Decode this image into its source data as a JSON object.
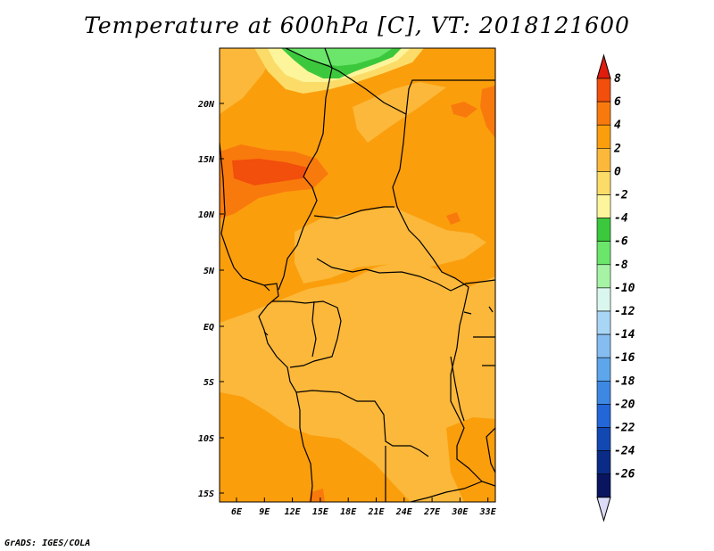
{
  "title": "Temperature at 600hPa [C], VT: 2018121600",
  "credit": "GrADS: IGES/COLA",
  "map": {
    "lat_labels": [
      "20N",
      "15N",
      "10N",
      "5N",
      "EQ",
      "5S",
      "10S",
      "15S"
    ],
    "lon_labels": [
      "6E",
      "9E",
      "12E",
      "15E",
      "18E",
      "21E",
      "24E",
      "27E",
      "30E",
      "33E"
    ]
  },
  "colorbar": {
    "levels": [
      "8",
      "6",
      "4",
      "2",
      "0",
      "-2",
      "-4",
      "-6",
      "-8",
      "-10",
      "-12",
      "-14",
      "-16",
      "-18",
      "-20",
      "-22",
      "-24",
      "-26"
    ],
    "colors": [
      "#e01c0c",
      "#f24e0c",
      "#f97a0c",
      "#fb9e0c",
      "#fbb83a",
      "#fbdc68",
      "#fdf59c",
      "#3cc83c",
      "#6be66b",
      "#a6f3a6",
      "#d9f7ee",
      "#aad6f5",
      "#86bdf0",
      "#5ea6eb",
      "#3d88e3",
      "#2266d8",
      "#1248b2",
      "#0b2c86",
      "#0a1560",
      "#dcdcf8"
    ]
  },
  "colors": {
    "field_base": "#fbb83a",
    "orange": "#fb9e0c",
    "dark_orange": "#f97a0c",
    "red_orange": "#f24e0c",
    "light_orange": "#fbdc68",
    "pale_yellow": "#fdf59c",
    "green": "#3cc83c",
    "light_green": "#6be66b",
    "border": "#000000"
  }
}
